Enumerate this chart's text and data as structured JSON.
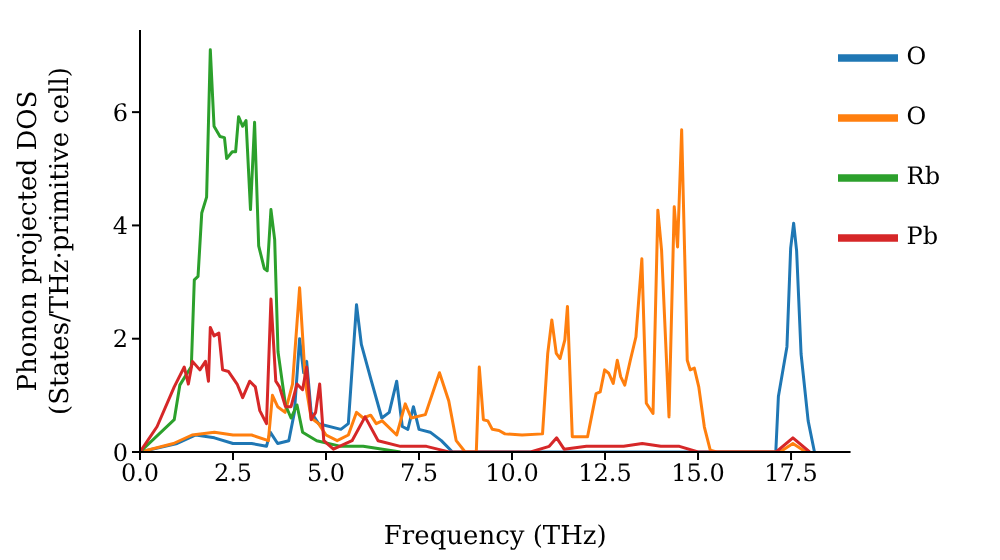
{
  "chart_data": {
    "type": "line",
    "xlabel": "Frequency (THz)",
    "ylabel": "Phonon projected DOS\n(States/THz·primitive cell)",
    "xlim": [
      0,
      19.1
    ],
    "xticks": [
      {
        "value": 0,
        "label": "0.0"
      },
      2.5,
      {
        "value": 5,
        "label": "5.0"
      },
      7.5,
      {
        "value": 10,
        "label": "10.0"
      },
      12.5,
      {
        "value": 15,
        "label": "15.0"
      },
      17.5
    ],
    "ylim": [
      0,
      7.45
    ],
    "yticks": [
      0,
      2,
      4,
      6
    ],
    "grid": false,
    "legend": "top right",
    "marker": "none",
    "line_style": "solid",
    "series": [
      {
        "name": "O",
        "color": "#1f77b4",
        "x": [
          0,
          1,
          1.5,
          2,
          2.5,
          3,
          3.4,
          3.5,
          3.7,
          4.0,
          4.15,
          4.29,
          4.4,
          4.48,
          4.6,
          4.8,
          5.4,
          5.6,
          5.82,
          5.95,
          6.2,
          6.5,
          6.7,
          6.9,
          7.05,
          7.2,
          7.35,
          7.5,
          7.8,
          8.1,
          8.4,
          17.09,
          17.16,
          17.39,
          17.49,
          17.57,
          17.65,
          17.77,
          17.96,
          18.13
        ],
        "values": [
          0,
          0.15,
          0.3,
          0.25,
          0.15,
          0.15,
          0.1,
          0.35,
          0.15,
          0.2,
          0.7,
          2.0,
          1.4,
          1.6,
          0.7,
          0.5,
          0.4,
          0.5,
          2.6,
          1.9,
          1.3,
          0.6,
          0.7,
          1.25,
          0.45,
          0.4,
          0.8,
          0.4,
          0.35,
          0.2,
          0,
          0,
          0.98,
          1.86,
          3.6,
          4.04,
          3.55,
          1.73,
          0.55,
          0
        ]
      },
      {
        "name": "O",
        "color": "#ff7f0e",
        "x": [
          0,
          0.9,
          1.4,
          2.0,
          2.5,
          3.0,
          3.45,
          3.56,
          3.7,
          3.9,
          4.1,
          4.29,
          4.45,
          4.6,
          4.8,
          5.0,
          5.3,
          5.6,
          5.82,
          6.0,
          6.2,
          6.35,
          6.51,
          6.9,
          7.13,
          7.29,
          7.67,
          8.05,
          8.3,
          8.5,
          8.74,
          9.04,
          9.12,
          9.23,
          9.35,
          9.47,
          9.65,
          9.81,
          10.27,
          10.82,
          10.96,
          11.07,
          11.19,
          11.29,
          11.42,
          11.49,
          11.62,
          12.03,
          12.26,
          12.37,
          12.49,
          12.6,
          12.72,
          12.83,
          12.92,
          13.03,
          13.18,
          13.33,
          13.49,
          13.61,
          13.79,
          13.92,
          14.02,
          14.22,
          14.36,
          14.45,
          14.56,
          14.71,
          14.79,
          14.9,
          15.02,
          15.17,
          15.33,
          15.5,
          17.2,
          17.55,
          17.9
        ],
        "values": [
          0,
          0.15,
          0.3,
          0.35,
          0.3,
          0.3,
          0.2,
          1.0,
          0.8,
          0.7,
          1.2,
          2.9,
          1.2,
          0.6,
          0.5,
          0.3,
          0.2,
          0.3,
          0.7,
          0.6,
          0.65,
          0.5,
          0.55,
          0.3,
          0.85,
          0.6,
          0.66,
          1.4,
          0.9,
          0.2,
          0,
          0,
          1.5,
          0.57,
          0.55,
          0.4,
          0.38,
          0.32,
          0.3,
          0.32,
          1.74,
          2.33,
          1.74,
          1.65,
          1.98,
          2.57,
          0.27,
          0.27,
          1.03,
          1.06,
          1.45,
          1.39,
          1.21,
          1.62,
          1.33,
          1.18,
          1.62,
          2.03,
          3.41,
          0.86,
          0.68,
          4.27,
          3.56,
          0.62,
          4.33,
          3.62,
          5.69,
          1.62,
          1.45,
          1.48,
          1.15,
          0.44,
          0.03,
          0,
          0,
          0.15,
          0
        ]
      },
      {
        "name": "Rb",
        "color": "#2ca02c",
        "x": [
          0,
          0.92,
          1.07,
          1.38,
          1.46,
          1.56,
          1.66,
          1.79,
          1.89,
          1.99,
          2.15,
          2.27,
          2.33,
          2.48,
          2.57,
          2.65,
          2.76,
          2.85,
          2.97,
          3.08,
          3.19,
          3.34,
          3.42,
          3.52,
          3.62,
          3.71,
          3.91,
          4.06,
          4.22,
          4.37,
          4.75,
          5.4,
          6.0,
          7.0
        ],
        "values": [
          0,
          0.57,
          1.18,
          1.51,
          3.04,
          3.1,
          4.22,
          4.5,
          7.1,
          5.75,
          5.57,
          5.55,
          5.18,
          5.3,
          5.3,
          5.92,
          5.75,
          5.85,
          4.28,
          5.82,
          3.64,
          3.24,
          3.2,
          4.28,
          3.75,
          1.77,
          0.83,
          0.6,
          0.83,
          0.35,
          0.2,
          0.1,
          0.1,
          0
        ]
      },
      {
        "name": "Pb",
        "color": "#d62728",
        "x": [
          0,
          0.46,
          0.92,
          1.19,
          1.3,
          1.41,
          1.61,
          1.76,
          1.84,
          1.89,
          1.99,
          2.12,
          2.22,
          2.38,
          2.61,
          2.76,
          2.95,
          3.1,
          3.22,
          3.4,
          3.52,
          3.65,
          3.75,
          3.91,
          4.06,
          4.22,
          4.37,
          4.48,
          4.6,
          4.72,
          4.83,
          4.94,
          5.2,
          5.7,
          6.05,
          6.4,
          7.0,
          7.7,
          8.0,
          8.3,
          10.5,
          11.0,
          11.2,
          11.4,
          12.0,
          13.0,
          13.5,
          14.0,
          14.5,
          15.0,
          17.1,
          17.55,
          18.0
        ],
        "values": [
          0,
          0.45,
          1.15,
          1.5,
          1.2,
          1.6,
          1.45,
          1.6,
          1.25,
          2.2,
          2.05,
          2.1,
          1.45,
          1.42,
          1.2,
          0.96,
          1.25,
          1.15,
          0.73,
          0.5,
          2.7,
          1.25,
          1.15,
          0.8,
          0.8,
          1.2,
          1.1,
          1.5,
          0.57,
          0.7,
          1.2,
          0.2,
          0.05,
          0.2,
          0.62,
          0.2,
          0.1,
          0.1,
          0.05,
          0,
          0,
          0.1,
          0.25,
          0.05,
          0.1,
          0.1,
          0.15,
          0.1,
          0.1,
          0,
          0,
          0.25,
          0
        ]
      }
    ]
  }
}
